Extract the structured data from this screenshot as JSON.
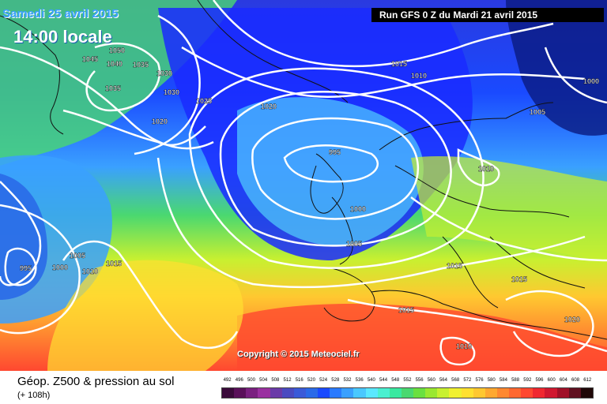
{
  "header": {
    "date": "Samedi 25 avril 2015",
    "time": "14:00 locale",
    "run": "Run GFS 0 Z du Mardi 21 avril 2015"
  },
  "copyright": "Copyright © 2015 Meteociel.fr",
  "footer": {
    "title": "Géop. Z500 & pression au sol",
    "subtitle": "(+ 108h)"
  },
  "legend": {
    "values": [
      "492",
      "496",
      "500",
      "504",
      "508",
      "512",
      "516",
      "520",
      "524",
      "528",
      "532",
      "536",
      "540",
      "544",
      "548",
      "552",
      "556",
      "560",
      "564",
      "568",
      "572",
      "576",
      "580",
      "584",
      "588",
      "592",
      "596",
      "600",
      "604",
      "608",
      "612"
    ],
    "colors": [
      "#3a0a3a",
      "#5a105a",
      "#7a2080",
      "#9a30a0",
      "#6a3aa8",
      "#4a4ac0",
      "#3a5ad8",
      "#2a6ae8",
      "#1a4aff",
      "#2a7aff",
      "#3aa0ff",
      "#4ac8ff",
      "#5ae8ff",
      "#4af0d0",
      "#3ae8a0",
      "#4ad870",
      "#6ae040",
      "#9ae830",
      "#c8f030",
      "#f0f030",
      "#ffe030",
      "#ffc830",
      "#ffa830",
      "#ff8830",
      "#ff6830",
      "#ff4830",
      "#f02830",
      "#d01830",
      "#a01028",
      "#601020",
      "#200808"
    ]
  },
  "pressure_labels": [
    "1050",
    "1045",
    "1040",
    "1035",
    "1030",
    "1035",
    "1030",
    "1025",
    "1020",
    "1020",
    "1015",
    "1010",
    "1005",
    "1000",
    "995",
    "1000",
    "1005",
    "1010",
    "1015",
    "1005",
    "1000",
    "995",
    "1010",
    "1015",
    "1015",
    "1015",
    "1020",
    "1010"
  ]
}
